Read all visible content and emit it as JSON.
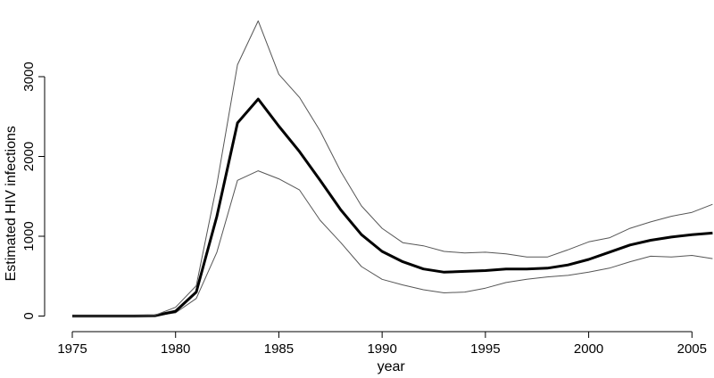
{
  "chart_data": {
    "type": "line",
    "title": "",
    "xlabel": "year",
    "ylabel": "Estimated HIV infections",
    "xlim": [
      1975,
      2006
    ],
    "ylim": [
      0,
      3700
    ],
    "grid": false,
    "legend": "none",
    "x": [
      1975,
      1976,
      1977,
      1978,
      1979,
      1980,
      1981,
      1982,
      1983,
      1984,
      1985,
      1986,
      1987,
      1988,
      1989,
      1990,
      1991,
      1992,
      1993,
      1994,
      1995,
      1996,
      1997,
      1998,
      1999,
      2000,
      2001,
      2002,
      2003,
      2004,
      2005,
      2006
    ],
    "series": [
      {
        "role": "lower",
        "color": "#555555",
        "values": [
          0,
          0,
          0,
          0,
          5,
          40,
          220,
          800,
          1700,
          1820,
          1720,
          1580,
          1200,
          920,
          620,
          460,
          390,
          330,
          290,
          300,
          350,
          420,
          460,
          490,
          510,
          550,
          600,
          680,
          750,
          740,
          760,
          720
        ]
      },
      {
        "role": "estimate",
        "color": "#000000",
        "values": [
          0,
          0,
          0,
          0,
          5,
          60,
          300,
          1250,
          2420,
          2720,
          2380,
          2060,
          1700,
          1330,
          1020,
          810,
          680,
          590,
          550,
          560,
          570,
          590,
          590,
          600,
          640,
          710,
          800,
          890,
          950,
          990,
          1020,
          1040
        ]
      },
      {
        "role": "upper",
        "color": "#555555",
        "values": [
          0,
          0,
          0,
          0,
          10,
          110,
          380,
          1650,
          3150,
          3700,
          3030,
          2740,
          2320,
          1810,
          1380,
          1100,
          920,
          880,
          810,
          790,
          800,
          780,
          740,
          740,
          830,
          930,
          980,
          1100,
          1180,
          1250,
          1300,
          1400
        ]
      }
    ],
    "xticks": [
      "1975",
      "1980",
      "1985",
      "1990",
      "1995",
      "2000",
      "2005"
    ],
    "yticks": [
      "0",
      "1000",
      "2000",
      "3000"
    ]
  }
}
